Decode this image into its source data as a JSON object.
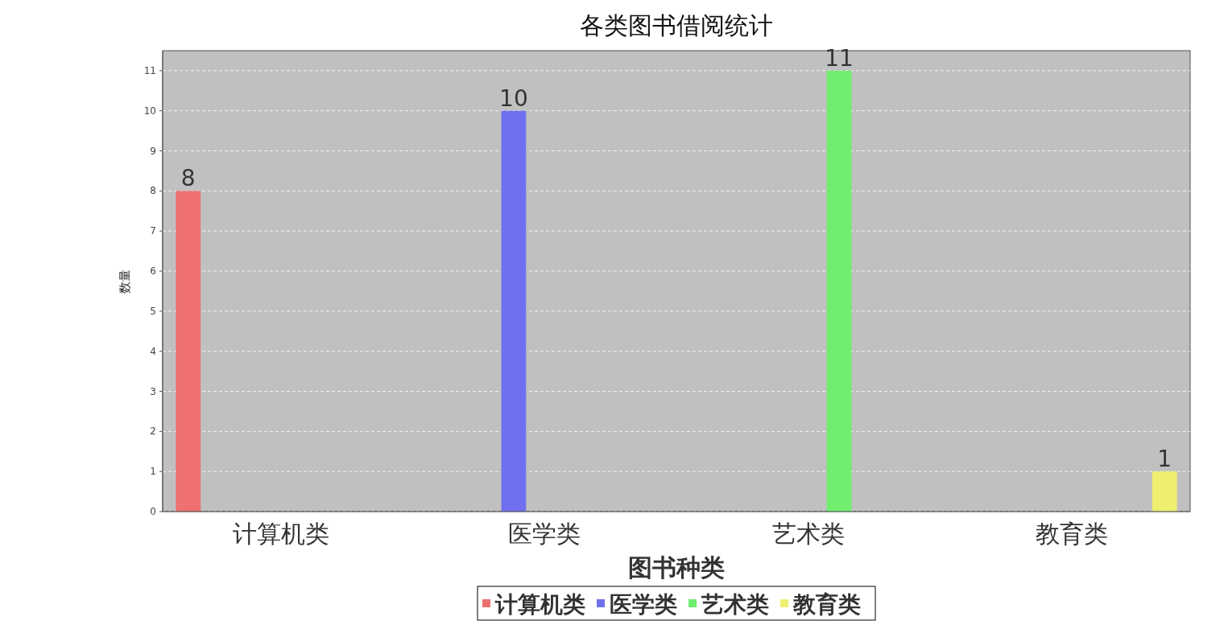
{
  "chart_data": {
    "type": "bar",
    "title": "各类图书借阅统计",
    "xlabel": "图书种类",
    "ylabel": "数量",
    "categories": [
      "计算机类",
      "医学类",
      "艺术类",
      "教育类"
    ],
    "series": [
      {
        "name": "计算机类",
        "color": "#ee7070",
        "values": [
          8,
          null,
          null,
          null
        ]
      },
      {
        "name": "医学类",
        "color": "#7070ee",
        "values": [
          null,
          10,
          null,
          null
        ]
      },
      {
        "name": "艺术类",
        "color": "#70ee70",
        "values": [
          null,
          null,
          11,
          null
        ]
      },
      {
        "name": "教育类",
        "color": "#eeee70",
        "values": [
          null,
          null,
          null,
          1
        ]
      }
    ],
    "ylim": [
      0,
      11.5
    ],
    "yticks": [
      0,
      1,
      2,
      3,
      4,
      5,
      6,
      7,
      8,
      9,
      10,
      11
    ],
    "grid": "y",
    "data_labels": true,
    "legend": "bottom"
  }
}
